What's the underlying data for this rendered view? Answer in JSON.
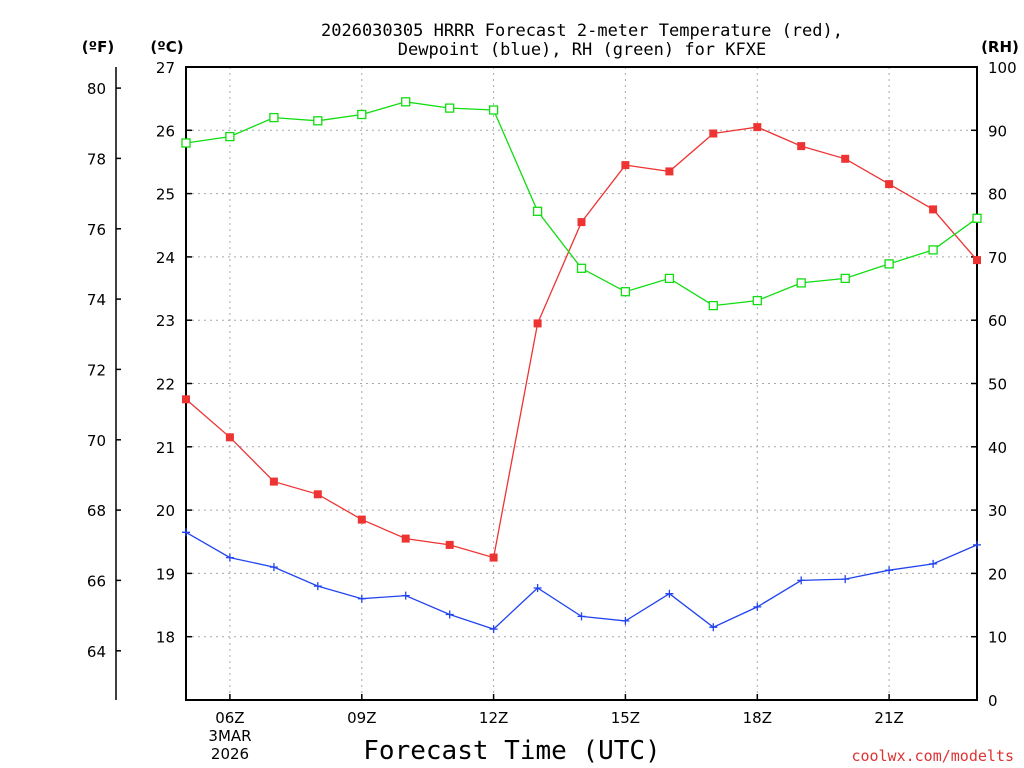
{
  "title_line1": "2026030305 HRRR Forecast 2-meter Temperature (red),",
  "title_line2": "Dewpoint (blue), RH (green) for KFXE",
  "units": {
    "fahrenheit": "(ºF)",
    "celsius": "(ºC)",
    "rh": "(RH)"
  },
  "xlabel": "Forecast Time (UTC)",
  "credit": "coolwx.com/modelts",
  "date_label": {
    "line1": "3MAR",
    "line2": "2026"
  },
  "colors": {
    "temp": "#ee3333",
    "dewpoint": "#2244ee",
    "rh": "#11dd11"
  },
  "chart_data": {
    "type": "line",
    "x": [
      5,
      6,
      7,
      8,
      9,
      10,
      11,
      12,
      13,
      14,
      15,
      16,
      17,
      18,
      19,
      20,
      21,
      22,
      23
    ],
    "x_range": [
      5,
      23
    ],
    "x_ticks": [
      6,
      9,
      12,
      15,
      18,
      21
    ],
    "x_tick_labels": [
      "06Z",
      "09Z",
      "12Z",
      "15Z",
      "18Z",
      "21Z"
    ],
    "y_celsius_range": [
      17,
      27
    ],
    "y_celsius_ticks": [
      18,
      19,
      20,
      21,
      22,
      23,
      24,
      25,
      26,
      27
    ],
    "y_fahrenheit_range": [
      62.6,
      80.6
    ],
    "y_fahrenheit_ticks": [
      64,
      66,
      68,
      70,
      72,
      74,
      76,
      78,
      80
    ],
    "y_rh_range": [
      0,
      100
    ],
    "y_rh_ticks": [
      0,
      10,
      20,
      30,
      40,
      50,
      60,
      70,
      80,
      90,
      100
    ],
    "grid": true,
    "series": [
      {
        "name": "Temperature",
        "axis": "celsius",
        "marker": "filled-square",
        "values": [
          21.75,
          21.15,
          20.45,
          20.25,
          19.85,
          19.55,
          19.45,
          19.25,
          22.95,
          24.55,
          25.45,
          25.35,
          25.95,
          26.05,
          25.75,
          25.55,
          25.15,
          24.75,
          23.95
        ]
      },
      {
        "name": "Dewpoint",
        "axis": "celsius",
        "marker": "plus",
        "values": [
          19.65,
          19.25,
          19.1,
          18.8,
          18.6,
          18.65,
          18.35,
          18.12,
          18.77,
          18.32,
          18.25,
          18.68,
          18.15,
          18.47,
          18.89,
          18.91,
          19.05,
          19.15,
          19.45
        ]
      },
      {
        "name": "RH",
        "axis": "rh",
        "marker": "open-square",
        "values": [
          88,
          89,
          92,
          91.5,
          92.5,
          94.5,
          93.5,
          93.2,
          77.2,
          68.2,
          64.5,
          66.6,
          62.3,
          63.1,
          65.9,
          66.6,
          68.9,
          71.1,
          76.1
        ]
      }
    ]
  }
}
